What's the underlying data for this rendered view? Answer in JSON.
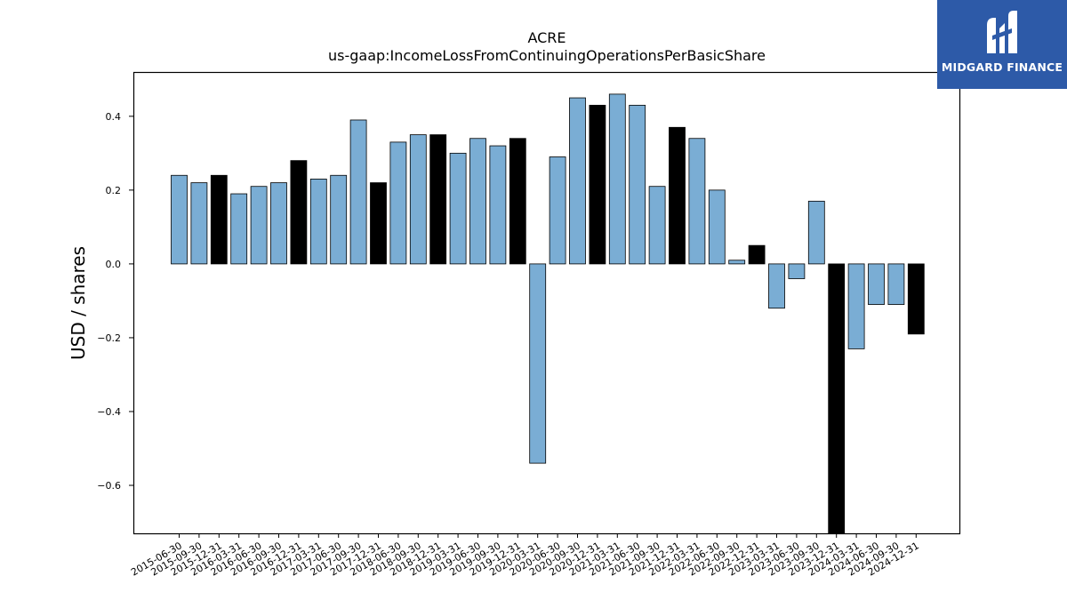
{
  "chart_data": {
    "type": "bar",
    "title": "ACRE",
    "subtitle": "us-gaap:IncomeLossFromContinuingOperationsPerBasicShare",
    "xlabel": "",
    "ylabel": "USD / shares",
    "ylim": [
      -0.73,
      0.52
    ],
    "yticks": [
      0.4,
      0.2,
      0.0,
      -0.2,
      -0.4,
      -0.6
    ],
    "ytick_labels": [
      "0.4",
      "0.2",
      "0.0",
      "−0.2",
      "−0.4",
      "−0.6"
    ],
    "grid": false,
    "legend": "none",
    "categories": [
      "2015-06-30",
      "2015-09-30",
      "2015-12-31",
      "2016-03-31",
      "2016-06-30",
      "2016-09-30",
      "2016-12-31",
      "2017-03-31",
      "2017-06-30",
      "2017-09-30",
      "2017-12-31",
      "2018-06-30",
      "2018-09-30",
      "2018-12-31",
      "2019-03-31",
      "2019-06-30",
      "2019-09-30",
      "2019-12-31",
      "2020-03-31",
      "2020-06-30",
      "2020-09-30",
      "2020-12-31",
      "2021-03-31",
      "2021-06-30",
      "2021-09-30",
      "2021-12-31",
      "2022-03-31",
      "2022-06-30",
      "2022-09-30",
      "2022-12-31",
      "2023-03-31",
      "2023-06-30",
      "2023-09-30",
      "2023-12-31",
      "2024-03-31",
      "2024-06-30",
      "2024-09-30",
      "2024-12-31"
    ],
    "values": [
      0.24,
      0.22,
      0.24,
      0.19,
      0.21,
      0.22,
      0.28,
      0.23,
      0.24,
      0.39,
      0.22,
      0.33,
      0.35,
      0.35,
      0.3,
      0.34,
      0.32,
      0.34,
      -0.54,
      0.29,
      0.45,
      0.43,
      0.46,
      0.43,
      0.21,
      0.37,
      0.34,
      0.2,
      0.01,
      0.05,
      -0.12,
      -0.04,
      0.17,
      -0.73,
      -0.23,
      -0.11,
      -0.11,
      -0.19
    ],
    "highlighted": [
      false,
      false,
      true,
      false,
      false,
      false,
      true,
      false,
      false,
      false,
      true,
      false,
      false,
      true,
      false,
      false,
      false,
      true,
      false,
      false,
      false,
      true,
      false,
      false,
      false,
      true,
      false,
      false,
      false,
      true,
      false,
      false,
      false,
      true,
      false,
      false,
      false,
      true
    ],
    "colors": {
      "bar": "#7aadd4",
      "highlight": "#000000",
      "edge": "#000000"
    }
  },
  "logo": {
    "text": "MIDGARD FINANCE",
    "background": "#2d5aa8"
  }
}
